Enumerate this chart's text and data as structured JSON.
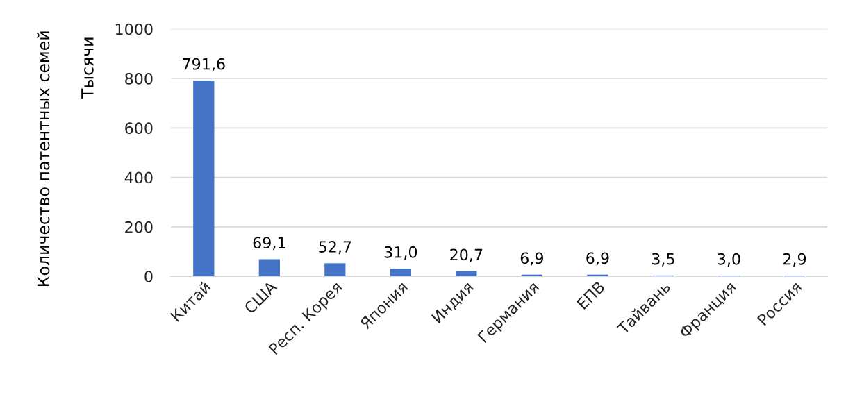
{
  "chart_data": {
    "type": "bar",
    "ylabel": "Количество патентных семей",
    "annotations": [
      "Тысячи"
    ],
    "categories": [
      "Китай",
      "США",
      "Респ. Корея",
      "Япония",
      "Индия",
      "Германия",
      "ЕПВ",
      "Тайвань",
      "Франция",
      "Россия"
    ],
    "values": [
      791.6,
      69.1,
      52.7,
      31.0,
      20.7,
      6.9,
      6.9,
      3.5,
      3.0,
      2.9
    ],
    "value_labels": [
      "791,6",
      "69,1",
      "52,7",
      "31,0",
      "20,7",
      "6,9",
      "6,9",
      "3,5",
      "3,0",
      "2,9"
    ],
    "color": "#4472c4",
    "ylim": [
      0,
      1000
    ],
    "yticks": [
      0,
      200,
      400,
      600,
      800,
      1000
    ],
    "grid": "y"
  }
}
